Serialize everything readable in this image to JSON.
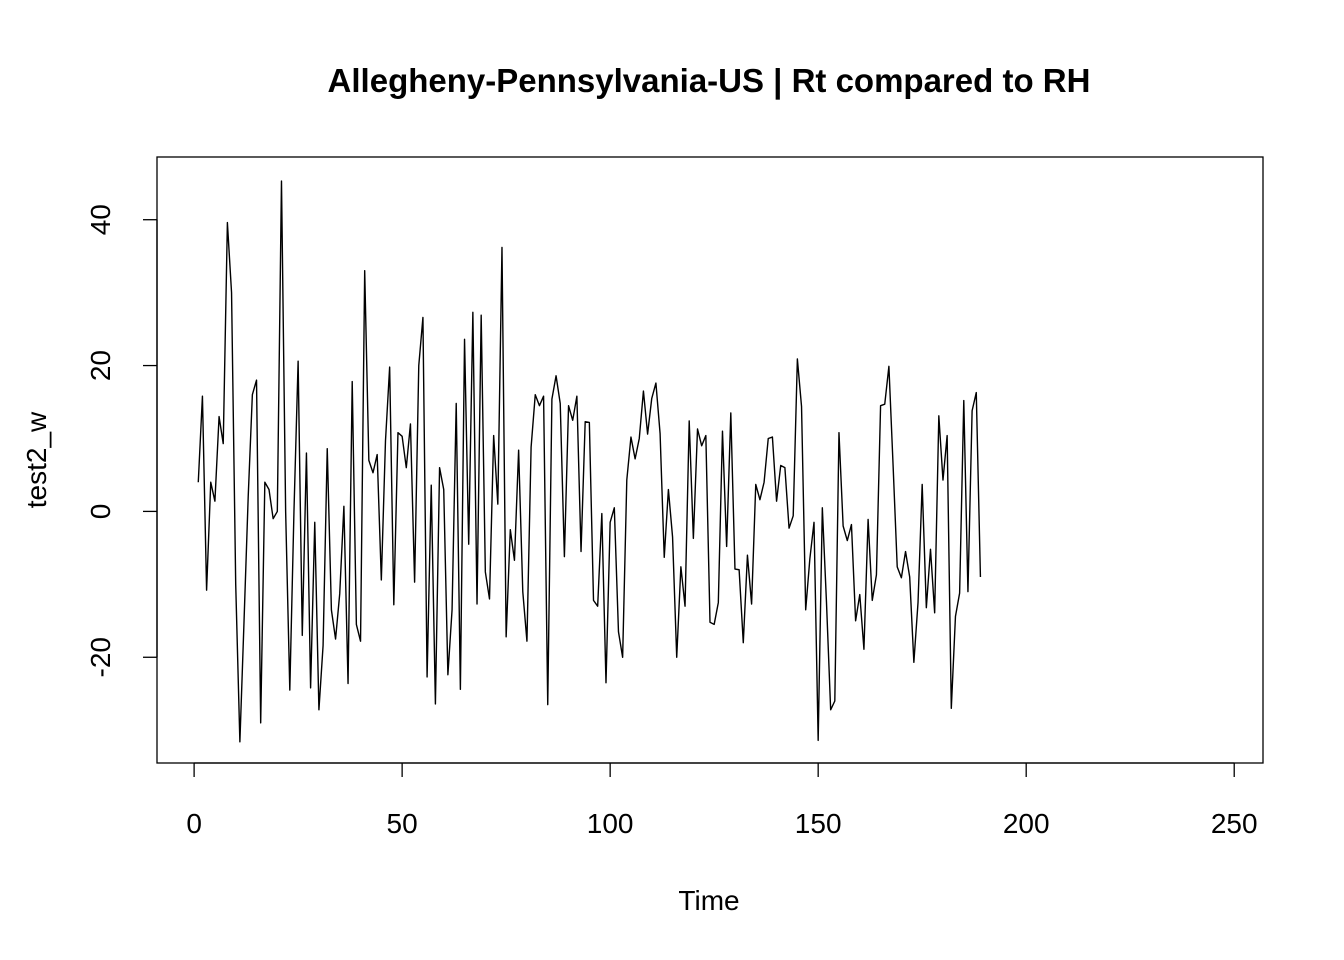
{
  "chart_data": {
    "type": "line",
    "title": "Allegheny-Pennsylvania-US | Rt compared to RH",
    "xlabel": "Time",
    "ylabel": "test2_w",
    "xlim": [
      -8.92,
      256.92
    ],
    "ylim": [
      -34.5,
      48.6
    ],
    "x_ticks": [
      0,
      50,
      100,
      150,
      200,
      250
    ],
    "y_ticks": [
      -20,
      0,
      20,
      40
    ],
    "grid": false,
    "series": [
      {
        "color": "#000000",
        "x_start": 1,
        "values": [
          4,
          15.8,
          -10.8,
          4,
          1.4,
          13,
          9.3,
          39.6,
          30,
          -10,
          -31.6,
          -15,
          2,
          16,
          18,
          -29,
          4,
          3,
          -1,
          0,
          45.3,
          0,
          -24.5,
          0,
          20.6,
          -17,
          8,
          -24.2,
          -1.5,
          -27.2,
          -18.4,
          8.6,
          -13.5,
          -17.5,
          -11.3,
          0.7,
          -23.6,
          17.8,
          -15.5,
          -17.8,
          33,
          7,
          5.3,
          7.8,
          -9.4,
          9.7,
          19.8,
          -12.8,
          10.8,
          10.3,
          6,
          12,
          -9.7,
          20,
          26.6,
          -22.7,
          3.6,
          -26.4,
          6,
          3,
          -22.4,
          -13.5,
          14.8,
          -24.4,
          23.6,
          -4.5,
          27.3,
          -12.7,
          26.9,
          -8.3,
          -12,
          10.4,
          1,
          36.2,
          -17.2,
          -2.5,
          -6.7,
          8.4,
          -11,
          -17.8,
          8.8,
          16,
          14.5,
          15.8,
          -26.5,
          15.4,
          18.6,
          14.8,
          -6.2,
          14.5,
          12.5,
          15.8,
          -5.5,
          12.3,
          12.2,
          -12.2,
          -13,
          -0.3,
          -23.5,
          -1.5,
          0.5,
          -16.5,
          -20,
          4.3,
          10.2,
          7.2,
          10,
          16.5,
          10.6,
          15.5,
          17.6,
          10.7,
          -6.3,
          3,
          -3.5,
          -20,
          -7.6,
          -13,
          12.4,
          -3.7,
          11.3,
          9,
          10.4,
          -15.2,
          -15.5,
          -12.5,
          11,
          -4.8,
          13.5,
          -7.9,
          -8,
          -18,
          -6,
          -12.7,
          3.7,
          1.6,
          4,
          10,
          10.2,
          1.4,
          6.3,
          6,
          -2.3,
          -0.6,
          20.9,
          14.4,
          -13.5,
          -6.5,
          -1.5,
          -31.4,
          0.5,
          -12.5,
          -27.2,
          -26,
          10.8,
          -2,
          -4,
          -1.8,
          -15,
          -11.4,
          -18.9,
          -1.1,
          -12.2,
          -8.7,
          14.5,
          14.7,
          19.9,
          6.4,
          -7.6,
          -9.1,
          -5.5,
          -9,
          -20.7,
          -12.5,
          3.7,
          -13.2,
          -5.2,
          -13.9,
          13.1,
          4.3,
          10.4,
          -27,
          -14.4,
          -11.2,
          15.2,
          -11,
          13.8,
          16.3,
          -9
        ]
      }
    ]
  }
}
